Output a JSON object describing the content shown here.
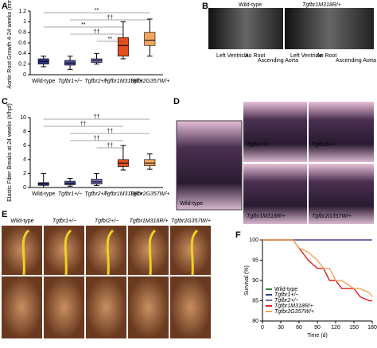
{
  "panels": {
    "labels": [
      "A",
      "B",
      "C",
      "D",
      "E",
      "F"
    ]
  },
  "chart_data": [
    {
      "type": "box",
      "ylabel": "Aortic Root Growth 4-24 weeks (mm)",
      "categories": [
        "Wild-type",
        "Tgfbr1+/−",
        "Tgfbr2+/−",
        "Tgfbr1M318R/+",
        "Tgfbr2G357W/+"
      ],
      "boxes": [
        {
          "low": 0.15,
          "q1": 0.2,
          "median": 0.25,
          "q3": 0.3,
          "high": 0.35
        },
        {
          "low": 0.1,
          "q1": 0.18,
          "median": 0.22,
          "q3": 0.27,
          "high": 0.35
        },
        {
          "low": 0.2,
          "q1": 0.23,
          "median": 0.27,
          "q3": 0.3,
          "high": 0.4
        },
        {
          "low": 0.3,
          "q1": 0.35,
          "median": 0.55,
          "q3": 0.7,
          "high": 1.0
        },
        {
          "low": 0.35,
          "q1": 0.55,
          "median": 0.65,
          "q3": 0.8,
          "high": 1.05
        }
      ],
      "colors": [
        "#2b3a8f",
        "#4a4f9c",
        "#7a6cb0",
        "#e0501f",
        "#f2a55a"
      ],
      "significance": [
        "**",
        "††",
        "**",
        "††",
        "**"
      ],
      "ylim": [
        0,
        1.2
      ],
      "yticks": [
        0,
        0.2,
        0.4,
        0.6,
        0.8,
        1.0,
        1.2
      ]
    },
    {
      "type": "box",
      "ylabel": "Elastic Fiber Breaks at 24 weeks (#/hpf)",
      "categories": [
        "Wild-type",
        "Tgfbr1+/−",
        "Tgfbr2+/−",
        "Tgfbr1M318R/+",
        "Tgfbr2G357W/+"
      ],
      "boxes": [
        {
          "low": 0,
          "q1": 0.3,
          "median": 0.5,
          "q3": 0.7,
          "high": 2
        },
        {
          "low": 0.2,
          "q1": 0.4,
          "median": 0.6,
          "q3": 0.9,
          "high": 1.3
        },
        {
          "low": 0.3,
          "q1": 0.5,
          "median": 0.8,
          "q3": 1.2,
          "high": 2
        },
        {
          "low": 2.5,
          "q1": 3,
          "median": 3.5,
          "q3": 4,
          "high": 6
        },
        {
          "low": 2.6,
          "q1": 3.1,
          "median": 3.5,
          "q3": 4,
          "high": 4.8
        }
      ],
      "colors": [
        "#2b3a8f",
        "#4a4f9c",
        "#7a6cb0",
        "#e0501f",
        "#f2a55a"
      ],
      "significance": [
        "††",
        "††",
        "††",
        "††",
        "††"
      ],
      "ylim": [
        0,
        10
      ],
      "yticks": [
        0,
        2,
        4,
        6,
        8,
        10
      ]
    },
    {
      "type": "line",
      "xlabel": "Time (d)",
      "ylabel": "Survival (%)",
      "x": [
        0,
        50,
        60,
        75,
        90,
        100,
        110,
        120,
        130,
        150,
        160,
        175,
        180
      ],
      "series": [
        {
          "name": "Wild-type",
          "color": "#2e8b3a",
          "values": [
            100,
            100,
            100,
            100,
            100,
            100,
            100,
            100,
            100,
            100,
            100,
            100,
            100
          ]
        },
        {
          "name": "Tgfbr1+/−",
          "color": "#2b3a8f",
          "values": [
            100,
            100,
            100,
            100,
            100,
            100,
            100,
            100,
            100,
            100,
            100,
            100,
            100
          ]
        },
        {
          "name": "Tgfbr2+/−",
          "color": "#7a6cb0",
          "values": [
            100,
            100,
            100,
            100,
            100,
            100,
            100,
            100,
            100,
            100,
            100,
            100,
            100
          ]
        },
        {
          "name": "Tgfbr1M318R/+",
          "color": "#e0201f",
          "values": [
            100,
            100,
            98,
            95,
            93,
            93,
            90,
            90,
            88,
            88,
            86,
            85,
            85
          ]
        },
        {
          "name": "Tgfbr2G357W/+",
          "color": "#f2a55a",
          "values": [
            100,
            100,
            98,
            97,
            95,
            93,
            93,
            90,
            90,
            88,
            88,
            87,
            86
          ]
        }
      ],
      "xlim": [
        0,
        180
      ],
      "xticks": [
        0,
        30,
        60,
        90,
        120,
        150,
        180
      ],
      "ylim": [
        80,
        100
      ],
      "yticks": [
        80,
        85,
        90,
        95,
        100
      ],
      "legend": "lower-left"
    }
  ],
  "ultrasound": {
    "genotypes": [
      "Wild-type",
      "Tgfbr1M318R/+"
    ],
    "regions": [
      "Left Ventricle",
      "Ao Root",
      "Ascending Aorta"
    ]
  },
  "histology": {
    "genotypes": [
      "Wild-type",
      "Tgfbr1+/−",
      "Tgfbr2+/−",
      "Tgfbr1M318R/+",
      "Tgfbr2G357W/+"
    ]
  },
  "photos": {
    "genotypes": [
      "Wild-type",
      "Tgfbr1+/−",
      "Tgfbr2+/−",
      "Tgfbr1M318R/+",
      "Tgfbr2G357W/+"
    ]
  }
}
